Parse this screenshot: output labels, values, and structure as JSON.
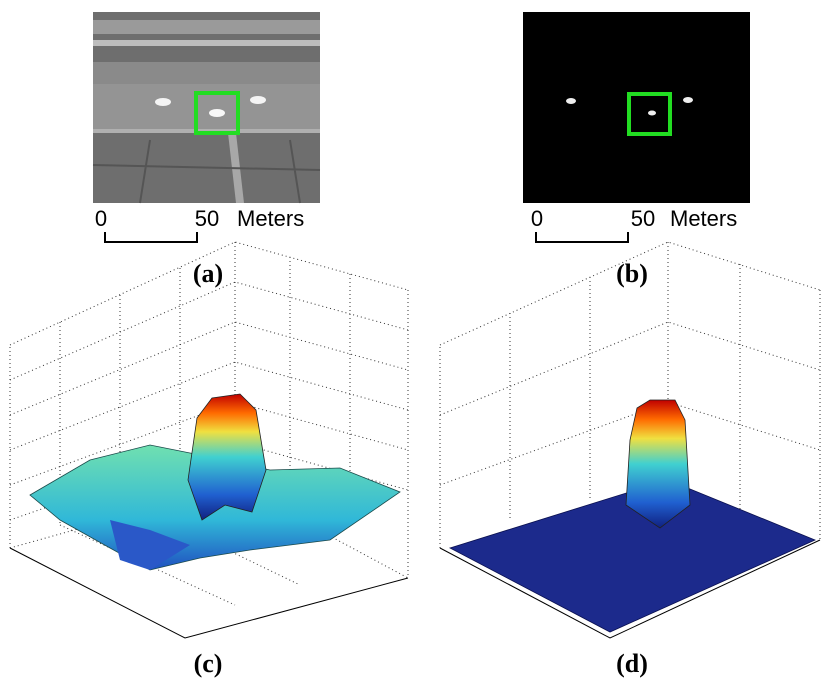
{
  "panels": [
    {
      "label": "(a)",
      "scale": {
        "start": "0",
        "end": "50",
        "unit": "Meters"
      }
    },
    {
      "label": "(b)",
      "scale": {
        "start": "0",
        "end": "50",
        "unit": "Meters"
      }
    },
    {
      "label": "(c)"
    },
    {
      "label": "(d)"
    }
  ]
}
